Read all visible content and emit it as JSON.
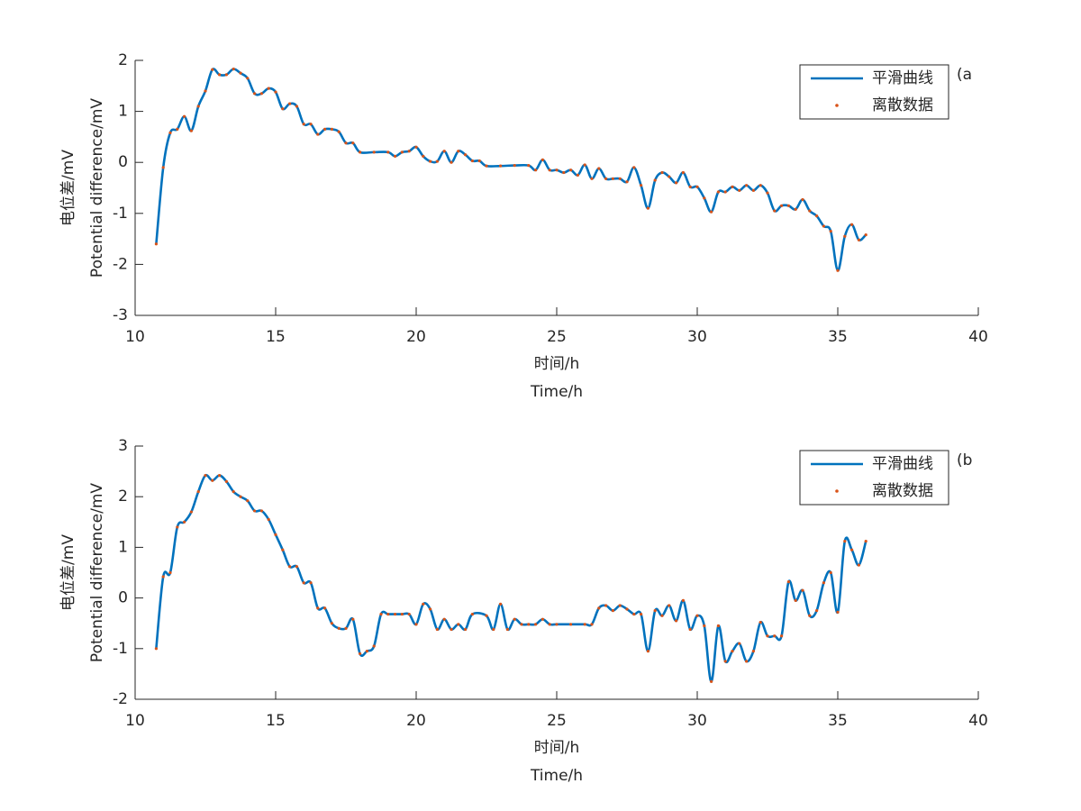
{
  "chart_data": [
    {
      "type": "line",
      "annotation": "(a",
      "xlabel": [
        "时间/h",
        "Time/h"
      ],
      "ylabel": [
        "电位差/mV",
        "Potential difference/mV"
      ],
      "xlim": [
        10,
        40
      ],
      "xticks": [
        10,
        15,
        20,
        25,
        30,
        35,
        40
      ],
      "ylim": [
        -3,
        2
      ],
      "yticks": [
        -3,
        -2,
        -1,
        0,
        1,
        2
      ],
      "legend": "upper right",
      "x": [
        10.75,
        11,
        11.25,
        11.5,
        11.75,
        12,
        12.25,
        12.5,
        12.75,
        13,
        13.25,
        13.5,
        13.75,
        14,
        14.25,
        14.5,
        14.75,
        15,
        15.25,
        15.5,
        15.75,
        16,
        16.25,
        16.5,
        16.75,
        17,
        17.25,
        17.5,
        17.75,
        18,
        18.5,
        19,
        19.25,
        19.5,
        19.75,
        20,
        20.25,
        20.5,
        20.75,
        21,
        21.25,
        21.5,
        21.75,
        22,
        22.25,
        22.5,
        23,
        23.5,
        24,
        24.25,
        24.5,
        24.75,
        25,
        25.25,
        25.5,
        25.75,
        26,
        26.25,
        26.5,
        26.75,
        27,
        27.25,
        27.5,
        27.75,
        28,
        28.25,
        28.5,
        28.75,
        29,
        29.25,
        29.5,
        29.75,
        30,
        30.25,
        30.5,
        30.75,
        31,
        31.25,
        31.5,
        31.75,
        32,
        32.25,
        32.5,
        32.75,
        33,
        33.25,
        33.5,
        33.75,
        34,
        34.25,
        34.5,
        34.75,
        35,
        35.25,
        35.5,
        35.75,
        36
      ],
      "series": [
        {
          "name": "平滑曲线",
          "color": "#0072bd",
          "style": "line",
          "values": [
            -1.6,
            -0.1,
            0.58,
            0.65,
            0.9,
            0.62,
            1.1,
            1.4,
            1.82,
            1.72,
            1.72,
            1.83,
            1.75,
            1.65,
            1.35,
            1.35,
            1.45,
            1.38,
            1.05,
            1.15,
            1.1,
            0.75,
            0.75,
            0.55,
            0.65,
            0.65,
            0.6,
            0.38,
            0.38,
            0.2,
            0.2,
            0.2,
            0.12,
            0.2,
            0.22,
            0.3,
            0.12,
            0.02,
            0.02,
            0.22,
            0.0,
            0.22,
            0.15,
            0.03,
            0.03,
            -0.07,
            -0.07,
            -0.06,
            -0.06,
            -0.15,
            0.05,
            -0.15,
            -0.15,
            -0.2,
            -0.15,
            -0.25,
            -0.05,
            -0.32,
            -0.12,
            -0.32,
            -0.32,
            -0.32,
            -0.38,
            -0.1,
            -0.45,
            -0.9,
            -0.35,
            -0.2,
            -0.28,
            -0.4,
            -0.2,
            -0.48,
            -0.48,
            -0.7,
            -0.97,
            -0.58,
            -0.58,
            -0.48,
            -0.55,
            -0.45,
            -0.55,
            -0.45,
            -0.6,
            -0.95,
            -0.85,
            -0.85,
            -0.92,
            -0.73,
            -0.95,
            -1.05,
            -1.25,
            -1.35,
            -2.12,
            -1.45,
            -1.22,
            -1.52,
            -1.42
          ]
        },
        {
          "name": "离散数据",
          "color": "#d95319",
          "style": "markers",
          "values": [
            -1.6,
            -0.1,
            0.58,
            0.65,
            0.9,
            0.62,
            1.1,
            1.4,
            1.82,
            1.72,
            1.72,
            1.83,
            1.75,
            1.65,
            1.35,
            1.35,
            1.45,
            1.38,
            1.05,
            1.15,
            1.1,
            0.75,
            0.75,
            0.55,
            0.65,
            0.65,
            0.6,
            0.38,
            0.38,
            0.2,
            0.2,
            0.2,
            0.12,
            0.2,
            0.22,
            0.3,
            0.12,
            0.02,
            0.02,
            0.22,
            0.0,
            0.22,
            0.15,
            0.03,
            0.03,
            -0.07,
            -0.07,
            -0.06,
            -0.06,
            -0.15,
            0.05,
            -0.15,
            -0.15,
            -0.2,
            -0.15,
            -0.25,
            -0.05,
            -0.32,
            -0.12,
            -0.32,
            -0.32,
            -0.32,
            -0.38,
            -0.1,
            -0.45,
            -0.9,
            -0.35,
            -0.2,
            -0.28,
            -0.4,
            -0.2,
            -0.48,
            -0.48,
            -0.7,
            -0.97,
            -0.58,
            -0.58,
            -0.48,
            -0.55,
            -0.45,
            -0.55,
            -0.45,
            -0.6,
            -0.95,
            -0.85,
            -0.85,
            -0.92,
            -0.73,
            -0.95,
            -1.05,
            -1.25,
            -1.35,
            -2.12,
            -1.45,
            -1.22,
            -1.52,
            -1.42
          ]
        }
      ]
    },
    {
      "type": "line",
      "annotation": "(b",
      "xlabel": [
        "时间/h",
        "Time/h"
      ],
      "ylabel": [
        "电位差/mV",
        "Potential difference/mV"
      ],
      "xlim": [
        10,
        40
      ],
      "xticks": [
        10,
        15,
        20,
        25,
        30,
        35,
        40
      ],
      "ylim": [
        -2,
        3
      ],
      "yticks": [
        -2,
        -1,
        0,
        1,
        2,
        3
      ],
      "legend": "upper right",
      "x": [
        10.75,
        11,
        11.25,
        11.5,
        11.75,
        12,
        12.25,
        12.5,
        12.75,
        13,
        13.25,
        13.5,
        13.75,
        14,
        14.25,
        14.5,
        14.75,
        15,
        15.25,
        15.5,
        15.75,
        16,
        16.25,
        16.5,
        16.75,
        17,
        17.25,
        17.5,
        17.75,
        18,
        18.25,
        18.5,
        18.75,
        19,
        19.25,
        19.5,
        19.75,
        20,
        20.25,
        20.5,
        20.75,
        21,
        21.25,
        21.5,
        21.75,
        22,
        22.5,
        22.75,
        23,
        23.25,
        23.5,
        23.75,
        24,
        24.25,
        24.5,
        24.75,
        25,
        25.5,
        26,
        26.25,
        26.5,
        26.75,
        27,
        27.25,
        27.5,
        27.75,
        28,
        28.25,
        28.5,
        28.75,
        29,
        29.25,
        29.5,
        29.75,
        30,
        30.25,
        30.5,
        30.75,
        31,
        31.25,
        31.5,
        31.75,
        32,
        32.25,
        32.5,
        32.75,
        33,
        33.25,
        33.5,
        33.75,
        34,
        34.25,
        34.5,
        34.75,
        35,
        35.25,
        35.5,
        35.75,
        36
      ],
      "series": [
        {
          "name": "平滑曲线",
          "color": "#0072bd",
          "style": "line",
          "values": [
            -1.0,
            0.42,
            0.5,
            1.4,
            1.5,
            1.7,
            2.1,
            2.42,
            2.32,
            2.42,
            2.3,
            2.1,
            2.0,
            1.92,
            1.72,
            1.72,
            1.55,
            1.25,
            0.95,
            0.62,
            0.62,
            0.3,
            0.3,
            -0.2,
            -0.2,
            -0.5,
            -0.6,
            -0.6,
            -0.42,
            -1.1,
            -1.05,
            -0.95,
            -0.32,
            -0.32,
            -0.32,
            -0.32,
            -0.32,
            -0.52,
            -0.12,
            -0.22,
            -0.62,
            -0.42,
            -0.62,
            -0.52,
            -0.62,
            -0.32,
            -0.35,
            -0.62,
            -0.12,
            -0.62,
            -0.42,
            -0.52,
            -0.52,
            -0.52,
            -0.42,
            -0.52,
            -0.52,
            -0.52,
            -0.52,
            -0.52,
            -0.2,
            -0.15,
            -0.25,
            -0.15,
            -0.22,
            -0.32,
            -0.32,
            -1.05,
            -0.25,
            -0.35,
            -0.15,
            -0.45,
            -0.05,
            -0.62,
            -0.35,
            -0.55,
            -1.65,
            -0.55,
            -1.25,
            -1.05,
            -0.9,
            -1.25,
            -1.05,
            -0.48,
            -0.75,
            -0.75,
            -0.75,
            0.32,
            -0.05,
            0.15,
            -0.35,
            -0.25,
            0.3,
            0.5,
            -0.28,
            1.12,
            0.95,
            0.65,
            1.12
          ]
        },
        {
          "name": "离散数据",
          "color": "#d95319",
          "style": "markers",
          "values": [
            -1.0,
            0.42,
            0.5,
            1.4,
            1.5,
            1.7,
            2.1,
            2.42,
            2.32,
            2.42,
            2.3,
            2.1,
            2.0,
            1.92,
            1.72,
            1.72,
            1.55,
            1.25,
            0.95,
            0.62,
            0.62,
            0.3,
            0.3,
            -0.2,
            -0.2,
            -0.5,
            -0.6,
            -0.6,
            -0.42,
            -1.1,
            -1.05,
            -0.95,
            -0.32,
            -0.32,
            -0.32,
            -0.32,
            -0.32,
            -0.52,
            -0.12,
            -0.22,
            -0.62,
            -0.42,
            -0.62,
            -0.52,
            -0.62,
            -0.32,
            -0.35,
            -0.62,
            -0.12,
            -0.62,
            -0.42,
            -0.52,
            -0.52,
            -0.52,
            -0.42,
            -0.52,
            -0.52,
            -0.52,
            -0.52,
            -0.52,
            -0.2,
            -0.15,
            -0.25,
            -0.15,
            -0.22,
            -0.32,
            -0.32,
            -1.05,
            -0.25,
            -0.35,
            -0.15,
            -0.45,
            -0.05,
            -0.62,
            -0.35,
            -0.55,
            -1.65,
            -0.55,
            -1.25,
            -1.05,
            -0.9,
            -1.25,
            -1.05,
            -0.48,
            -0.75,
            -0.75,
            -0.75,
            0.32,
            -0.05,
            0.15,
            -0.35,
            -0.25,
            0.3,
            0.5,
            -0.28,
            1.12,
            0.95,
            0.65,
            1.12
          ]
        }
      ]
    }
  ]
}
